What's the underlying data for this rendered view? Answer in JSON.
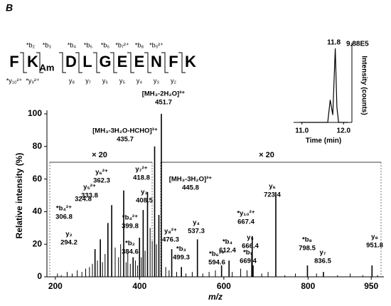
{
  "panel_label": "B",
  "peptide": {
    "residues": [
      "F",
      "K",
      "Am",
      "D",
      "L",
      "G",
      "E",
      "E",
      "N",
      "F",
      "K"
    ],
    "b_ions": [
      "*b₂",
      "*b₃",
      "*b₄",
      "*b₅",
      "*b₆",
      "*b₇²⁺",
      "*b₈",
      "*b₉²⁺"
    ],
    "y_ions": [
      "*y₁₀²⁺",
      "*y₉²⁺",
      "y₈",
      "y₇",
      "y₆",
      "y₅",
      "y₄",
      "y₃",
      "y₂"
    ]
  },
  "chart_data": [
    {
      "type": "spectrum",
      "y_label": "Relative intensity (%)",
      "x_label": "m/z",
      "xlim": [
        180,
        980
      ],
      "ylim": [
        0,
        100
      ],
      "xticks": [
        200,
        400,
        600,
        800,
        950
      ],
      "yticks": [
        0,
        20,
        40,
        60,
        80,
        100
      ],
      "zoom_labels": [
        "× 20",
        "× 20"
      ],
      "color": "#000000",
      "annotated": {
        "x": [
          294.2,
          306.8,
          324.8,
          333.8,
          362.3,
          384.6,
          399.8,
          408.5,
          418.8,
          435.7,
          451.7,
          445.8,
          476.3,
          499.3,
          537.3,
          594.6,
          612.4,
          666.4,
          667.4,
          669.4,
          723.4,
          798.5,
          836.5,
          951.8
        ],
        "values": [
          17,
          23,
          33,
          44,
          53,
          12,
          24,
          41,
          52,
          80,
          100,
          38,
          17,
          6,
          23,
          7,
          10,
          15,
          25,
          7,
          52,
          7,
          3,
          7
        ],
        "ions": [
          "y₂",
          "*b₄²⁺",
          null,
          "y₅²⁺",
          "y₆²⁺",
          "*b₂",
          "*b₄²⁺",
          "y₃",
          "y₇²⁺",
          "[MH₃-3H₂O-HCHO]³⁺",
          "[MH₃-2H₂O]³⁺",
          "[MH₃-3H₂O]³⁺",
          "y₈²⁺",
          "*b₃",
          "y₄",
          "*b₆²⁺",
          "*b₄",
          "y₅",
          "*y₁₀²⁺",
          "*b₅",
          "y₆",
          "*b₈",
          "y₇",
          "y₈"
        ]
      },
      "unlabeled": {
        "x": [
          205,
          214,
          228,
          240,
          252,
          263,
          272,
          281,
          288,
          300,
          312,
          318,
          342,
          350,
          355,
          368,
          372,
          378,
          390,
          395,
          404,
          413,
          425,
          430,
          440,
          462,
          470,
          488,
          510,
          525,
          550,
          565,
          580,
          620,
          640,
          655,
          690,
          705,
          745,
          770,
          820,
          870,
          900,
          930,
          965
        ],
        "values": [
          2,
          1,
          3,
          2,
          4,
          3,
          5,
          6,
          8,
          10,
          9,
          14,
          18,
          12,
          20,
          9,
          15,
          8,
          10,
          7,
          12,
          16,
          30,
          22,
          20,
          6,
          4,
          3,
          2,
          3,
          2,
          3,
          4,
          3,
          5,
          4,
          2,
          3,
          1,
          2,
          2,
          1,
          2,
          1,
          1
        ]
      }
    },
    {
      "type": "line",
      "x_label": "Time (min)",
      "y_label": "Intensity (counts)",
      "xlim": [
        10.8,
        12.2
      ],
      "ylim": [
        0,
        988000
      ],
      "xticks": [
        {
          "value": 11,
          "label": "11.0"
        },
        {
          "value": 12,
          "label": "12.0"
        }
      ],
      "max_label": "9.88E5",
      "peak_index": 5,
      "color": "#000000",
      "x": [
        10.95,
        11.5,
        11.62,
        11.68,
        11.74,
        11.8,
        11.84,
        11.88,
        12.0,
        12.1
      ],
      "values": [
        0,
        0,
        0,
        300000,
        100000,
        988000,
        200000,
        0,
        0,
        0
      ]
    }
  ]
}
